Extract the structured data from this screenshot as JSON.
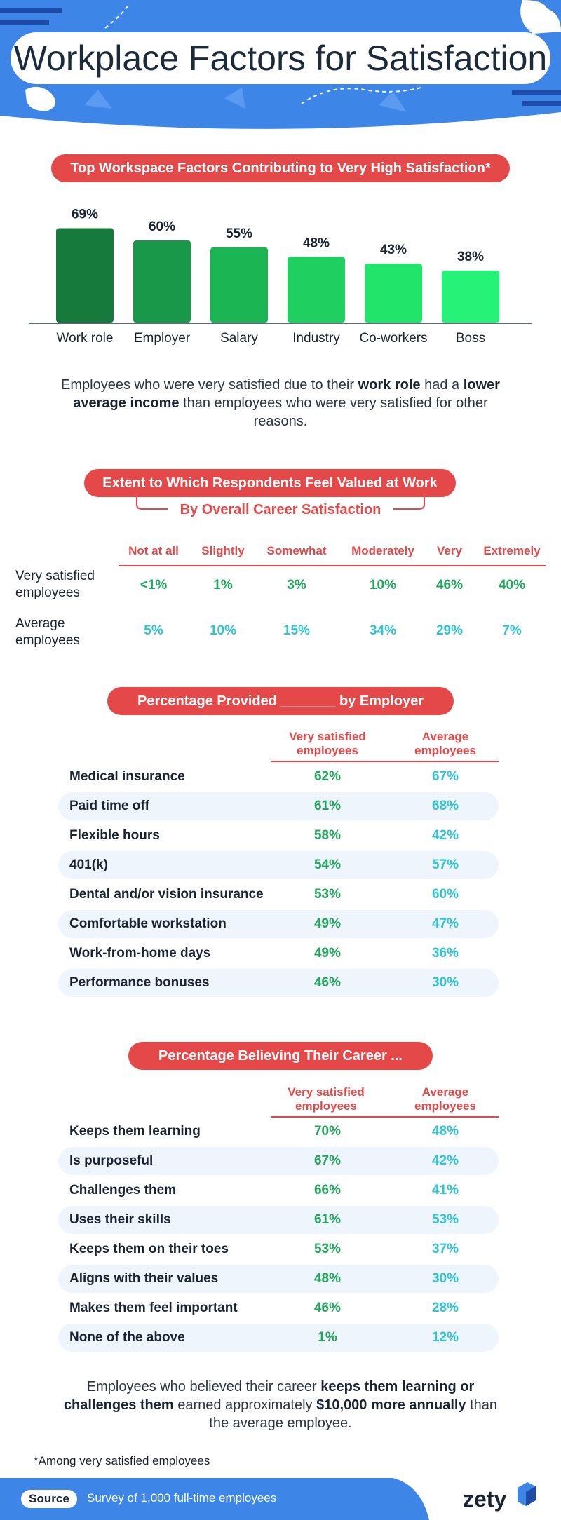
{
  "title": "Workplace Factors for Satisfaction",
  "colors": {
    "accent": "#e54848",
    "blue": "#3d86e8",
    "green": "#21a55a",
    "teal": "#2ec4d6"
  },
  "section1": {
    "heading": "Top Workspace Factors Contributing to Very High Satisfaction*",
    "note_parts": [
      "Employees who were very satisfied due to their ",
      "work role",
      " had a ",
      "lower average income",
      " than employees who were very satisfied for other reasons."
    ]
  },
  "chart_data": {
    "type": "bar",
    "categories": [
      "Work role",
      "Employer",
      "Salary",
      "Industry",
      "Co-workers",
      "Boss"
    ],
    "values": [
      69,
      60,
      55,
      48,
      43,
      38
    ],
    "value_labels": [
      "69%",
      "60%",
      "55%",
      "48%",
      "43%",
      "38%"
    ],
    "colors": [
      "#157a3b",
      "#189848",
      "#1cb553",
      "#1fcf5f",
      "#21e56a",
      "#25f277"
    ],
    "ylim": [
      0,
      80
    ],
    "grid": false,
    "legend": "none"
  },
  "section2": {
    "heading": "Extent to Which Respondents Feel Valued at Work",
    "subheading": "By Overall Career Satisfaction",
    "columns": [
      "Not at all",
      "Slightly",
      "Somewhat",
      "Moderately",
      "Very",
      "Extremely"
    ],
    "rows": [
      {
        "label": "Very satisfied employees",
        "values": [
          "<1%",
          "1%",
          "3%",
          "10%",
          "46%",
          "40%"
        ]
      },
      {
        "label": "Average employees",
        "values": [
          "5%",
          "10%",
          "15%",
          "34%",
          "29%",
          "7%"
        ]
      }
    ]
  },
  "section3": {
    "heading": "Percentage Provided _______ by Employer",
    "col1": "Very satisfied employees",
    "col2": "Average employees",
    "rows": [
      {
        "label": "Medical insurance",
        "a": "62%",
        "b": "67%"
      },
      {
        "label": "Paid time off",
        "a": "61%",
        "b": "68%"
      },
      {
        "label": "Flexible hours",
        "a": "58%",
        "b": "42%"
      },
      {
        "label": "401(k)",
        "a": "54%",
        "b": "57%"
      },
      {
        "label": "Dental and/or vision insurance",
        "a": "53%",
        "b": "60%"
      },
      {
        "label": "Comfortable workstation",
        "a": "49%",
        "b": "47%"
      },
      {
        "label": "Work-from-home days",
        "a": "49%",
        "b": "36%"
      },
      {
        "label": "Performance bonuses",
        "a": "46%",
        "b": "30%"
      }
    ]
  },
  "section4": {
    "heading": "Percentage Believing Their Career ...",
    "col1": "Very satisfied employees",
    "col2": "Average employees",
    "rows": [
      {
        "label": "Keeps them learning",
        "a": "70%",
        "b": "48%"
      },
      {
        "label": "Is purposeful",
        "a": "67%",
        "b": "42%"
      },
      {
        "label": "Challenges them",
        "a": "66%",
        "b": "41%"
      },
      {
        "label": "Uses their skills",
        "a": "61%",
        "b": "53%"
      },
      {
        "label": "Keeps them on their toes",
        "a": "53%",
        "b": "37%"
      },
      {
        "label": "Aligns with their values",
        "a": "48%",
        "b": "30%"
      },
      {
        "label": "Makes them feel important",
        "a": "46%",
        "b": "28%"
      },
      {
        "label": "None of the above",
        "a": "1%",
        "b": "12%"
      }
    ],
    "note_parts": [
      "Employees who believed their career ",
      "keeps them learning or challenges them",
      " earned approximately ",
      "$10,000 more annually",
      " than the average employee."
    ]
  },
  "footnote": "*Among very satisfied employees",
  "footer": {
    "source_label": "Source",
    "source_text": "Survey of 1,000 full-time employees",
    "brand": "zety"
  }
}
